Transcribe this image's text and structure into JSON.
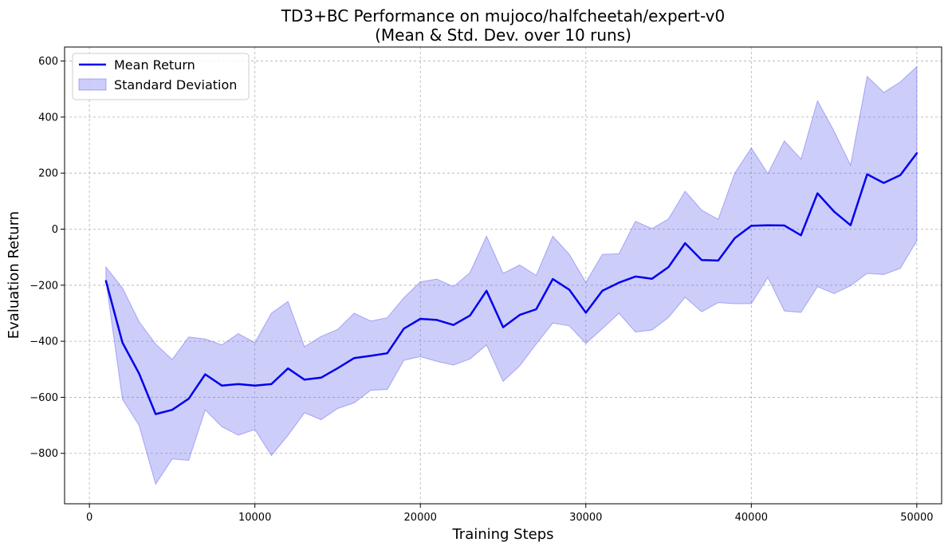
{
  "chart_data": {
    "type": "line",
    "title": "TD3+BC Performance on mujoco/halfcheetah/expert-v0",
    "subtitle": "(Mean & Std. Dev. over 10 runs)",
    "xlabel": "Training Steps",
    "ylabel": "Evaluation Return",
    "xlim": [
      -1500,
      51500
    ],
    "ylim": [
      -980,
      650
    ],
    "x_ticks": [
      0,
      10000,
      20000,
      30000,
      40000,
      50000
    ],
    "y_ticks": [
      -800,
      -600,
      -400,
      -200,
      0,
      200,
      400,
      600
    ],
    "grid": true,
    "legend_position": "top-left",
    "x": [
      1000,
      2000,
      3000,
      4000,
      5000,
      6000,
      7000,
      8000,
      9000,
      10000,
      11000,
      12000,
      13000,
      14000,
      15000,
      16000,
      17000,
      18000,
      19000,
      20000,
      21000,
      22000,
      23000,
      24000,
      25000,
      26000,
      27000,
      28000,
      29000,
      30000,
      31000,
      32000,
      33000,
      34000,
      35000,
      36000,
      37000,
      38000,
      39000,
      40000,
      41000,
      42000,
      43000,
      44000,
      45000,
      46000,
      47000,
      48000,
      49000,
      50000
    ],
    "series": [
      {
        "name": "Mean Return",
        "kind": "line",
        "color": "#0000ee",
        "values": [
          -185,
          -405,
          -515,
          -660,
          -645,
          -605,
          -518,
          -558,
          -553,
          -558,
          -553,
          -497,
          -537,
          -530,
          -496,
          -460,
          -452,
          -443,
          -355,
          -320,
          -324,
          -342,
          -308,
          -220,
          -350,
          -306,
          -286,
          -178,
          -216,
          -298,
          -220,
          -191,
          -169,
          -177,
          -135,
          -50,
          -110,
          -112,
          -32,
          12,
          14,
          13,
          -22,
          128,
          63,
          14,
          196,
          165,
          193,
          271
        ]
      },
      {
        "name": "Standard Deviation",
        "kind": "band",
        "color": "#6666ee",
        "upper": [
          -135,
          -210,
          -330,
          -410,
          -465,
          -385,
          -392,
          -413,
          -373,
          -405,
          -300,
          -258,
          -420,
          -383,
          -358,
          -300,
          -328,
          -316,
          -245,
          -188,
          -178,
          -205,
          -155,
          -25,
          -158,
          -128,
          -165,
          -25,
          -90,
          -190,
          -90,
          -88,
          28,
          2,
          37,
          135,
          68,
          35,
          200,
          290,
          198,
          315,
          250,
          458,
          350,
          228,
          545,
          488,
          525,
          580
        ]
      }
    ],
    "band_lower": [
      -185,
      -607,
      -700,
      -910,
      -820,
      -825,
      -645,
      -705,
      -735,
      -715,
      -808,
      -736,
      -655,
      -680,
      -640,
      -620,
      -575,
      -572,
      -468,
      -455,
      -472,
      -485,
      -463,
      -413,
      -543,
      -488,
      -410,
      -335,
      -345,
      -408,
      -355,
      -300,
      -367,
      -360,
      -315,
      -243,
      -295,
      -262,
      -266,
      -266,
      -172,
      -292,
      -297,
      -205,
      -230,
      -202,
      -158,
      -162,
      -140,
      -42
    ]
  }
}
